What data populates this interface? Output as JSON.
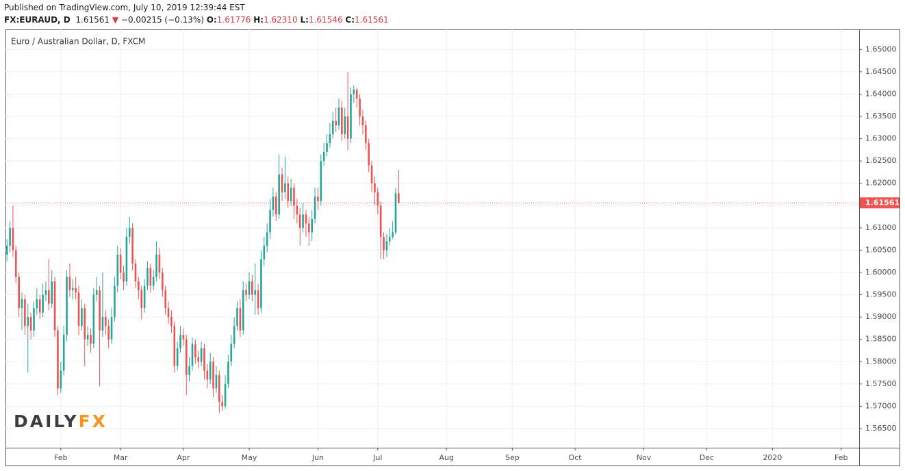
{
  "header": {
    "published": "Published on TradingView.com, July 10, 2019 12:39:44 EST",
    "symbol": "FX:EURAUD, D",
    "last": "1.61561",
    "arrow": "▼",
    "change": "−0.00215 (−0.13%)",
    "o_label": "O:",
    "o_value": "1.61776",
    "h_label": "H:",
    "h_value": "1.62310",
    "l_label": "L:",
    "l_value": "1.61546",
    "c_label": "C:",
    "c_value": "1.61561"
  },
  "chart_data": {
    "type": "candlestick",
    "title": "Euro / Australian Dollar, D, FXCM",
    "watermark": [
      "DAILY",
      "FX"
    ],
    "up_color": "#26a69a",
    "down_color": "#ef5350",
    "grid": true,
    "x": [
      0,
      1,
      2,
      3,
      4,
      5,
      6,
      7,
      8,
      9,
      10,
      11,
      12,
      13,
      14,
      15,
      16,
      17,
      18,
      19,
      20,
      21,
      22,
      23,
      24,
      25,
      26,
      27,
      28,
      29,
      30,
      31,
      32,
      33,
      34,
      35,
      36,
      37,
      38,
      39,
      40,
      41,
      42,
      43,
      44,
      45,
      46,
      47,
      48,
      49,
      50,
      51,
      52,
      53,
      54,
      55,
      56,
      57,
      58,
      59,
      60,
      61,
      62,
      63,
      64,
      65,
      66,
      67,
      68,
      69,
      70,
      71,
      72,
      73,
      74,
      75,
      76,
      77,
      78,
      79,
      80,
      81,
      82,
      83,
      84,
      85,
      86,
      87,
      88,
      89,
      90,
      91,
      92,
      93,
      94,
      95,
      96,
      97,
      98,
      99,
      100,
      101,
      102,
      103,
      104,
      105,
      106,
      107,
      108,
      109,
      110,
      111,
      112,
      113,
      114,
      115,
      116,
      117,
      118,
      119,
      120,
      121,
      122,
      123,
      124,
      125,
      126,
      127,
      128,
      129,
      130,
      131
    ],
    "open": [
      1.604,
      1.606,
      1.61,
      1.605,
      1.599,
      1.592,
      1.594,
      1.588,
      1.59,
      1.587,
      1.592,
      1.594,
      1.591,
      1.595,
      1.596,
      1.593,
      1.598,
      1.587,
      1.574,
      1.578,
      1.586,
      1.599,
      1.596,
      1.5965,
      1.5955,
      1.588,
      1.592,
      1.585,
      1.586,
      1.584,
      1.595,
      1.596,
      1.587,
      1.59,
      1.588,
      1.585,
      1.59,
      1.597,
      1.604,
      1.6,
      1.598,
      1.608,
      1.61,
      1.602,
      1.598,
      1.596,
      1.592,
      1.597,
      1.601,
      1.597,
      1.599,
      1.604,
      1.6,
      1.596,
      1.592,
      1.59,
      1.588,
      1.579,
      1.583,
      1.586,
      1.585,
      1.577,
      1.579,
      1.584,
      1.581,
      1.58,
      1.583,
      1.578,
      1.576,
      1.58,
      1.574,
      1.577,
      1.571,
      1.57,
      1.575,
      1.58,
      1.584,
      1.588,
      1.592,
      1.587,
      1.596,
      1.595,
      1.598,
      1.595,
      1.596,
      1.592,
      1.603,
      1.606,
      1.609,
      1.614,
      1.617,
      1.613,
      1.622,
      1.618,
      1.62,
      1.616,
      1.619,
      1.615,
      1.613,
      1.61,
      1.613,
      1.611,
      1.609,
      1.612,
      1.617,
      1.616,
      1.625,
      1.627,
      1.629,
      1.631,
      1.634,
      1.633,
      1.637,
      1.631,
      1.635,
      1.63,
      1.64,
      1.641,
      1.639,
      1.635,
      1.633,
      1.629,
      1.624,
      1.62,
      1.618,
      1.615,
      1.608,
      1.605,
      1.607,
      1.608,
      1.609,
      1.61776
    ],
    "high": [
      1.6075,
      1.6115,
      1.615,
      1.606,
      1.6,
      1.5955,
      1.595,
      1.593,
      1.591,
      1.5935,
      1.5965,
      1.595,
      1.5975,
      1.598,
      1.603,
      1.6005,
      1.599,
      1.588,
      1.58,
      1.588,
      1.6005,
      1.602,
      1.5985,
      1.599,
      1.597,
      1.594,
      1.593,
      1.588,
      1.5875,
      1.5965,
      1.599,
      1.597,
      1.6,
      1.5915,
      1.5895,
      1.592,
      1.599,
      1.606,
      1.6055,
      1.6015,
      1.61,
      1.6125,
      1.611,
      1.603,
      1.599,
      1.597,
      1.5985,
      1.6025,
      1.602,
      1.6005,
      1.607,
      1.6055,
      1.601,
      1.597,
      1.5935,
      1.5915,
      1.589,
      1.5845,
      1.588,
      1.5875,
      1.586,
      1.581,
      1.5855,
      1.585,
      1.5825,
      1.5845,
      1.584,
      1.5795,
      1.582,
      1.581,
      1.579,
      1.578,
      1.5725,
      1.577,
      1.5815,
      1.586,
      1.59,
      1.5935,
      1.594,
      1.598,
      1.5975,
      1.6,
      1.5995,
      1.602,
      1.5975,
      1.605,
      1.608,
      1.611,
      1.6165,
      1.619,
      1.618,
      1.6265,
      1.6235,
      1.626,
      1.6215,
      1.621,
      1.62,
      1.6165,
      1.6145,
      1.6155,
      1.614,
      1.6125,
      1.614,
      1.619,
      1.619,
      1.6265,
      1.629,
      1.631,
      1.6335,
      1.636,
      1.637,
      1.639,
      1.6385,
      1.637,
      1.645,
      1.6415,
      1.642,
      1.6415,
      1.64,
      1.6365,
      1.634,
      1.63,
      1.625,
      1.6215,
      1.619,
      1.616,
      1.609,
      1.6085,
      1.61,
      1.6115,
      1.619,
      1.6231
    ],
    "low": [
      1.6025,
      1.6045,
      1.6035,
      1.5975,
      1.59,
      1.587,
      1.586,
      1.5775,
      1.585,
      1.5855,
      1.5905,
      1.5895,
      1.59,
      1.5935,
      1.5915,
      1.592,
      1.5855,
      1.5725,
      1.573,
      1.577,
      1.5845,
      1.5945,
      1.594,
      1.594,
      1.586,
      1.587,
      1.579,
      1.5835,
      1.582,
      1.583,
      1.5935,
      1.5745,
      1.5855,
      1.586,
      1.583,
      1.584,
      1.589,
      1.5955,
      1.5985,
      1.596,
      1.597,
      1.6065,
      1.6005,
      1.5965,
      1.594,
      1.5895,
      1.591,
      1.596,
      1.5955,
      1.596,
      1.598,
      1.5985,
      1.5945,
      1.5905,
      1.5885,
      1.5865,
      1.5775,
      1.578,
      1.582,
      1.5835,
      1.5725,
      1.5755,
      1.578,
      1.5795,
      1.5785,
      1.579,
      1.576,
      1.574,
      1.575,
      1.572,
      1.573,
      1.5685,
      1.569,
      1.5695,
      1.574,
      1.579,
      1.583,
      1.587,
      1.5855,
      1.586,
      1.5935,
      1.594,
      1.5935,
      1.5905,
      1.5905,
      1.591,
      1.6015,
      1.6045,
      1.6075,
      1.6125,
      1.6115,
      1.612,
      1.616,
      1.6165,
      1.6145,
      1.615,
      1.612,
      1.611,
      1.606,
      1.609,
      1.608,
      1.606,
      1.607,
      1.611,
      1.614,
      1.615,
      1.624,
      1.626,
      1.628,
      1.63,
      1.6315,
      1.632,
      1.6295,
      1.63,
      1.6275,
      1.629,
      1.638,
      1.637,
      1.633,
      1.631,
      1.6275,
      1.6225,
      1.618,
      1.615,
      1.613,
      1.603,
      1.603,
      1.6035,
      1.606,
      1.6075,
      1.6085,
      1.61546
    ],
    "close": [
      1.606,
      1.61,
      1.605,
      1.599,
      1.592,
      1.594,
      1.588,
      1.59,
      1.587,
      1.592,
      1.594,
      1.591,
      1.595,
      1.596,
      1.593,
      1.598,
      1.587,
      1.574,
      1.578,
      1.586,
      1.599,
      1.596,
      1.5965,
      1.5955,
      1.588,
      1.592,
      1.585,
      1.586,
      1.584,
      1.595,
      1.596,
      1.587,
      1.59,
      1.588,
      1.585,
      1.59,
      1.597,
      1.604,
      1.6,
      1.598,
      1.608,
      1.61,
      1.602,
      1.598,
      1.596,
      1.592,
      1.597,
      1.601,
      1.597,
      1.599,
      1.604,
      1.6,
      1.596,
      1.592,
      1.59,
      1.588,
      1.579,
      1.583,
      1.586,
      1.585,
      1.577,
      1.579,
      1.584,
      1.581,
      1.58,
      1.583,
      1.578,
      1.576,
      1.58,
      1.574,
      1.577,
      1.571,
      1.57,
      1.575,
      1.58,
      1.584,
      1.588,
      1.592,
      1.587,
      1.596,
      1.595,
      1.598,
      1.595,
      1.596,
      1.592,
      1.603,
      1.606,
      1.609,
      1.614,
      1.617,
      1.613,
      1.622,
      1.618,
      1.62,
      1.616,
      1.619,
      1.615,
      1.613,
      1.61,
      1.613,
      1.611,
      1.609,
      1.612,
      1.617,
      1.616,
      1.625,
      1.627,
      1.629,
      1.631,
      1.634,
      1.633,
      1.637,
      1.631,
      1.635,
      1.63,
      1.64,
      1.641,
      1.639,
      1.635,
      1.633,
      1.629,
      1.624,
      1.62,
      1.618,
      1.615,
      1.608,
      1.605,
      1.607,
      1.608,
      1.609,
      1.61776,
      1.61561
    ],
    "xlim": [
      -0.5,
      285
    ],
    "xticks": [
      {
        "value": 18,
        "label": "Feb"
      },
      {
        "value": 38,
        "label": "Mar"
      },
      {
        "value": 59,
        "label": "Apr"
      },
      {
        "value": 81,
        "label": "May"
      },
      {
        "value": 104,
        "label": "Jun"
      },
      {
        "value": 124,
        "label": "Jul"
      },
      {
        "value": 147,
        "label": "Aug"
      },
      {
        "value": 169,
        "label": "Sep"
      },
      {
        "value": 190,
        "label": "Oct"
      },
      {
        "value": 213,
        "label": "Nov"
      },
      {
        "value": 234,
        "label": "Dec"
      },
      {
        "value": 256,
        "label": "2020"
      },
      {
        "value": 279,
        "label": "Feb"
      }
    ],
    "ylim": [
      1.5607,
      1.6545
    ],
    "yticks": [
      {
        "value": 1.565,
        "label": "1.56500"
      },
      {
        "value": 1.57,
        "label": "1.57000"
      },
      {
        "value": 1.575,
        "label": "1.57500"
      },
      {
        "value": 1.58,
        "label": "1.58000"
      },
      {
        "value": 1.585,
        "label": "1.58500"
      },
      {
        "value": 1.59,
        "label": "1.59000"
      },
      {
        "value": 1.595,
        "label": "1.59500"
      },
      {
        "value": 1.6,
        "label": "1.60000"
      },
      {
        "value": 1.605,
        "label": "1.60500"
      },
      {
        "value": 1.61,
        "label": "1.61000"
      },
      {
        "value": 1.615,
        "label": "1.61500"
      },
      {
        "value": 1.62,
        "label": "1.62000"
      },
      {
        "value": 1.625,
        "label": "1.62500"
      },
      {
        "value": 1.63,
        "label": "1.63000"
      },
      {
        "value": 1.635,
        "label": "1.63500"
      },
      {
        "value": 1.64,
        "label": "1.64000"
      },
      {
        "value": 1.645,
        "label": "1.64500"
      },
      {
        "value": 1.65,
        "label": "1.65000"
      }
    ],
    "last_price": {
      "value": 1.61561,
      "label": "1.61561"
    }
  }
}
